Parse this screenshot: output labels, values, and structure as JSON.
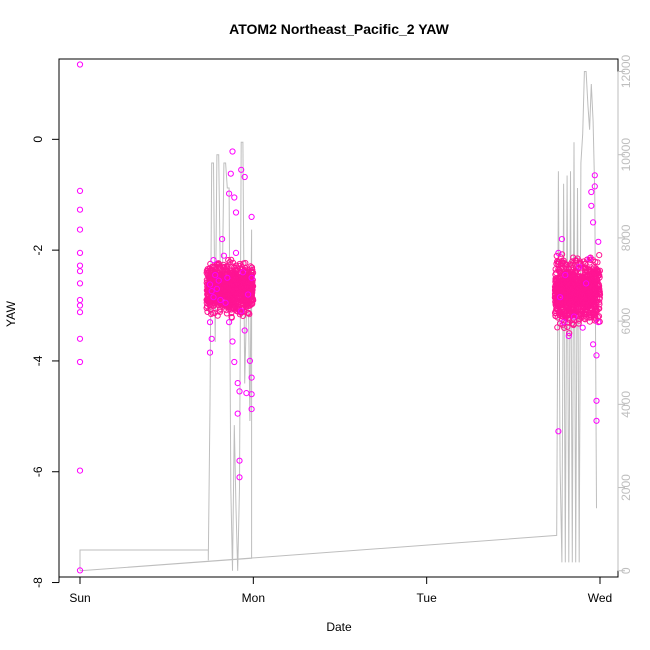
{
  "chart_data": {
    "type": "scatter",
    "title": "ATOM2 Northeast_Pacific_2 YAW",
    "xlabel": "Date",
    "ylabel": "YAW",
    "x_ticks": [
      "Sun",
      "Mon",
      "Tue",
      "Wed"
    ],
    "x_tick_values": [
      0,
      1,
      2,
      3
    ],
    "xlim": [
      0,
      3
    ],
    "y_ticks": [
      "-8",
      "-6",
      "-4",
      "-2",
      "0"
    ],
    "y_tick_values": [
      -8,
      -6,
      -4,
      -2,
      0
    ],
    "ylim": [
      -7.9,
      1.45
    ],
    "y2_ticks": [
      "0",
      "2000",
      "4000",
      "6000",
      "8000",
      "10000",
      "12000"
    ],
    "y2_tick_values": [
      0,
      2000,
      4000,
      6000,
      8000,
      10000,
      12000
    ],
    "y2lim": [
      -150,
      12300
    ],
    "series": [
      {
        "kind": "scatter",
        "color": "#ff00ff",
        "points": [
          [
            0.0,
            1.35
          ],
          [
            0.0,
            -0.93
          ],
          [
            0.0,
            -1.27
          ],
          [
            0.0,
            -1.63
          ],
          [
            0.0,
            -2.05
          ],
          [
            0.0,
            -2.28
          ],
          [
            0.0,
            -2.38
          ],
          [
            0.0,
            -2.6
          ],
          [
            0.0,
            -2.9
          ],
          [
            0.0,
            -3.0
          ],
          [
            0.0,
            -3.12
          ],
          [
            0.0,
            -3.6
          ],
          [
            0.0,
            -4.02
          ],
          [
            0.0,
            -5.98
          ],
          [
            0.0,
            -7.78
          ],
          [
            0.75,
            -2.62
          ],
          [
            0.76,
            -2.74
          ],
          [
            0.77,
            -2.85
          ],
          [
            0.75,
            -3.3
          ],
          [
            0.76,
            -3.6
          ],
          [
            0.75,
            -3.85
          ],
          [
            0.77,
            -2.18
          ],
          [
            0.78,
            -2.45
          ],
          [
            0.79,
            -2.7
          ],
          [
            0.8,
            -2.55
          ],
          [
            0.81,
            -2.9
          ],
          [
            0.82,
            -1.8
          ],
          [
            0.83,
            -2.1
          ],
          [
            0.84,
            -2.95
          ],
          [
            0.85,
            -2.5
          ],
          [
            0.86,
            -3.3
          ],
          [
            0.86,
            -0.98
          ],
          [
            0.87,
            -0.62
          ],
          [
            0.88,
            -0.22
          ],
          [
            0.88,
            -3.65
          ],
          [
            0.89,
            -4.02
          ],
          [
            0.89,
            -1.05
          ],
          [
            0.9,
            -1.32
          ],
          [
            0.9,
            -2.05
          ],
          [
            0.91,
            -4.4
          ],
          [
            0.91,
            -4.95
          ],
          [
            0.92,
            -5.8
          ],
          [
            0.92,
            -6.1
          ],
          [
            0.92,
            -4.55
          ],
          [
            0.93,
            -0.55
          ],
          [
            0.93,
            -3.1
          ],
          [
            0.94,
            -2.4
          ],
          [
            0.95,
            -0.68
          ],
          [
            0.95,
            -3.45
          ],
          [
            0.96,
            -4.58
          ],
          [
            0.97,
            -2.8
          ],
          [
            0.98,
            -4.0
          ],
          [
            0.99,
            -4.3
          ],
          [
            0.99,
            -4.6
          ],
          [
            0.99,
            -4.87
          ],
          [
            0.99,
            -1.4
          ],
          [
            0.99,
            -2.5
          ],
          [
            2.76,
            -2.05
          ],
          [
            2.76,
            -5.27
          ],
          [
            2.77,
            -2.85
          ],
          [
            2.78,
            -1.8
          ],
          [
            2.79,
            -3.3
          ],
          [
            2.8,
            -2.45
          ],
          [
            2.82,
            -3.55
          ],
          [
            2.85,
            -3.2
          ],
          [
            2.88,
            -2.3
          ],
          [
            2.9,
            -3.4
          ],
          [
            2.92,
            -2.6
          ],
          [
            2.94,
            -2.15
          ],
          [
            2.95,
            -0.95
          ],
          [
            2.95,
            -1.2
          ],
          [
            2.96,
            -1.5
          ],
          [
            2.96,
            -3.7
          ],
          [
            2.97,
            -0.65
          ],
          [
            2.97,
            -0.85
          ],
          [
            2.98,
            -3.9
          ],
          [
            2.98,
            -4.72
          ],
          [
            2.98,
            -5.08
          ],
          [
            2.99,
            -1.85
          ],
          [
            2.99,
            -3.3
          ]
        ]
      },
      {
        "kind": "dense-cluster",
        "color": "#ff1493",
        "clusters": [
          {
            "x_range": [
              0.73,
              1.0
            ],
            "y_center": -2.7,
            "y_spread": 0.35
          },
          {
            "x_range": [
              2.74,
              3.0
            ],
            "y_center": -2.75,
            "y_spread": 0.45
          }
        ]
      },
      {
        "kind": "line",
        "axis": "right",
        "color": "#bebebe",
        "points": [
          [
            0.0,
            0
          ],
          [
            0.0,
            500
          ],
          [
            0.74,
            500
          ],
          [
            0.74,
            250
          ],
          [
            0.75,
            4000
          ],
          [
            0.76,
            9800
          ],
          [
            0.77,
            9800
          ],
          [
            0.78,
            5500
          ],
          [
            0.79,
            10000
          ],
          [
            0.8,
            10000
          ],
          [
            0.81,
            7000
          ],
          [
            0.82,
            6500
          ],
          [
            0.83,
            9800
          ],
          [
            0.84,
            9800
          ],
          [
            0.85,
            9200
          ],
          [
            0.86,
            9200
          ],
          [
            0.87,
            2000
          ],
          [
            0.88,
            0
          ],
          [
            0.89,
            3500
          ],
          [
            0.9,
            1500
          ],
          [
            0.91,
            0
          ],
          [
            0.92,
            2000
          ],
          [
            0.93,
            10300
          ],
          [
            0.94,
            10300
          ],
          [
            0.95,
            4500
          ],
          [
            0.96,
            6200
          ],
          [
            0.97,
            7200
          ],
          [
            0.98,
            3600
          ],
          [
            0.99,
            8200
          ],
          [
            0.99,
            500
          ],
          [
            0.99,
            300
          ],
          [
            0.0,
            0
          ],
          [
            2.75,
            850
          ],
          [
            2.76,
            9600
          ],
          [
            2.77,
            2500
          ],
          [
            2.78,
            200
          ],
          [
            2.79,
            9300
          ],
          [
            2.8,
            200
          ],
          [
            2.81,
            9500
          ],
          [
            2.82,
            200
          ],
          [
            2.83,
            9600
          ],
          [
            2.84,
            200
          ],
          [
            2.85,
            10300
          ],
          [
            2.86,
            200
          ],
          [
            2.87,
            9200
          ],
          [
            2.88,
            200
          ],
          [
            2.89,
            9800
          ],
          [
            2.9,
            10500
          ],
          [
            2.91,
            12000
          ],
          [
            2.92,
            12000
          ],
          [
            2.93,
            11200
          ],
          [
            2.94,
            10600
          ],
          [
            2.95,
            11700
          ],
          [
            2.96,
            10800
          ],
          [
            2.97,
            9000
          ],
          [
            2.98,
            1500
          ]
        ]
      }
    ]
  }
}
